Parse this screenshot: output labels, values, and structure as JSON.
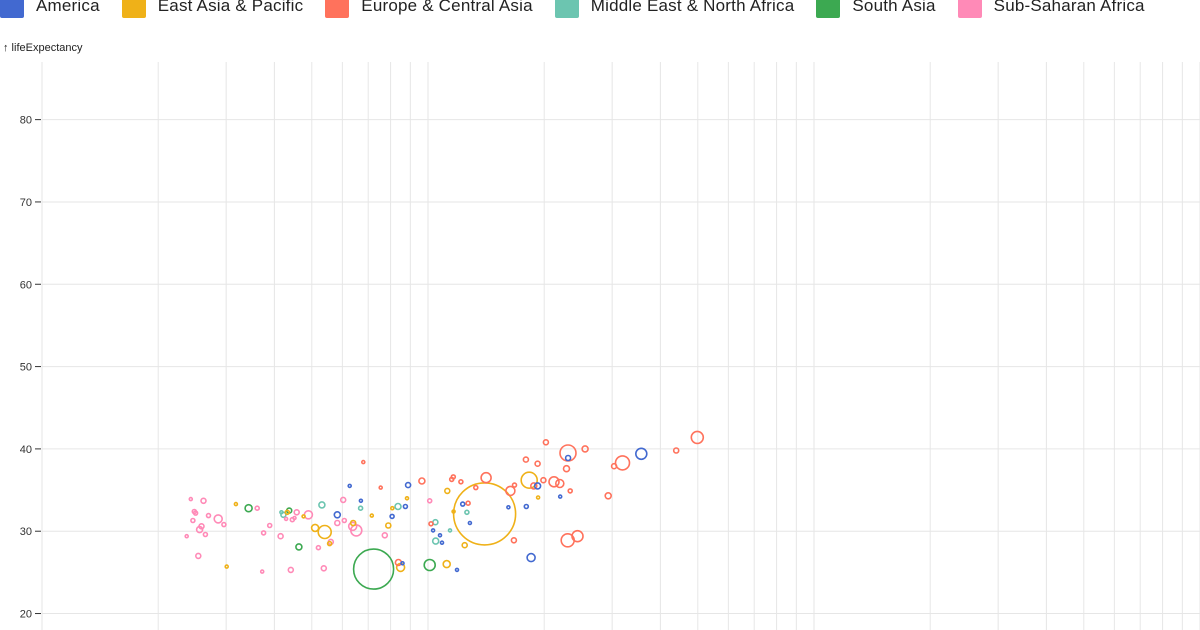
{
  "chart_data": {
    "type": "scatter",
    "title": "",
    "xlabel": "",
    "ylabel": "↑ lifeExpectancy",
    "x_scale": "log",
    "xlim": [
      100,
      100000
    ],
    "ylim": [
      18,
      87
    ],
    "y_ticks": [
      20,
      30,
      40,
      50,
      60,
      70,
      80
    ],
    "grid": true,
    "legend_position": "top-left",
    "categories": [
      {
        "name": "America",
        "color": "#4269d0"
      },
      {
        "name": "East Asia & Pacific",
        "color": "#efb118"
      },
      {
        "name": "Europe & Central Asia",
        "color": "#ff725c"
      },
      {
        "name": "Middle East & North Africa",
        "color": "#6cc5b0"
      },
      {
        "name": "South Asia",
        "color": "#3ca951"
      },
      {
        "name": "Sub-Saharan Africa",
        "color": "#ff8ab7"
      }
    ],
    "points": [
      {
        "group": "South Asia",
        "x": 723,
        "y": 25.4,
        "size": 20
      },
      {
        "group": "East Asia & Pacific",
        "x": 1402,
        "y": 32.1,
        "size": 31
      },
      {
        "group": "Europe & Central Asia",
        "x": 4985,
        "y": 41.4,
        "size": 6
      },
      {
        "group": "America",
        "x": 3570,
        "y": 39.4,
        "size": 5.5
      },
      {
        "group": "Europe & Central Asia",
        "x": 3190,
        "y": 38.3,
        "size": 7
      },
      {
        "group": "Europe & Central Asia",
        "x": 2305,
        "y": 39.5,
        "size": 8
      },
      {
        "group": "Europe & Central Asia",
        "x": 2301,
        "y": 28.9,
        "size": 6.5
      },
      {
        "group": "Europe & Central Asia",
        "x": 2439,
        "y": 29.4,
        "size": 5.5
      },
      {
        "group": "America",
        "x": 1850,
        "y": 26.8,
        "size": 4
      },
      {
        "group": "East Asia & Pacific",
        "x": 1829,
        "y": 36.2,
        "size": 8
      },
      {
        "group": "Europe & Central Asia",
        "x": 1635,
        "y": 34.9,
        "size": 4.5
      },
      {
        "group": "Europe & Central Asia",
        "x": 1414,
        "y": 36.5,
        "size": 5
      },
      {
        "group": "Europe & Central Asia",
        "x": 2195,
        "y": 35.8,
        "size": 4
      },
      {
        "group": "Europe & Central Asia",
        "x": 2121,
        "y": 36.0,
        "size": 5
      },
      {
        "group": "Europe & Central Asia",
        "x": 2285,
        "y": 37.6,
        "size": 3
      },
      {
        "group": "Europe & Central Asia",
        "x": 2553,
        "y": 40.0,
        "size": 3
      },
      {
        "group": "Europe & Central Asia",
        "x": 2020,
        "y": 40.8,
        "size": 2.5
      },
      {
        "group": "Europe & Central Asia",
        "x": 2929,
        "y": 34.3,
        "size": 3
      },
      {
        "group": "Europe & Central Asia",
        "x": 3035,
        "y": 37.9,
        "size": 2.5
      },
      {
        "group": "Europe & Central Asia",
        "x": 4395,
        "y": 39.8,
        "size": 2.5
      },
      {
        "group": "Europe & Central Asia",
        "x": 1880,
        "y": 35.5,
        "size": 3
      },
      {
        "group": "Europe & Central Asia",
        "x": 1793,
        "y": 38.7,
        "size": 2.5
      },
      {
        "group": "Europe & Central Asia",
        "x": 1923,
        "y": 38.2,
        "size": 2.5
      },
      {
        "group": "America",
        "x": 1923,
        "y": 35.5,
        "size": 3
      },
      {
        "group": "America",
        "x": 2306,
        "y": 38.9,
        "size": 2.5
      },
      {
        "group": "Europe & Central Asia",
        "x": 2336,
        "y": 34.9,
        "size": 2
      },
      {
        "group": "America",
        "x": 2200,
        "y": 34.2,
        "size": 1.5
      },
      {
        "group": "Europe & Central Asia",
        "x": 1990,
        "y": 36.2,
        "size": 2.5
      },
      {
        "group": "Europe & Central Asia",
        "x": 1217,
        "y": 36.0,
        "size": 2
      },
      {
        "group": "Europe & Central Asia",
        "x": 1330,
        "y": 35.3,
        "size": 2
      },
      {
        "group": "America",
        "x": 1798,
        "y": 33.0,
        "size": 2
      },
      {
        "group": "Europe & Central Asia",
        "x": 1675,
        "y": 35.6,
        "size": 2
      },
      {
        "group": "East Asia & Pacific",
        "x": 1928,
        "y": 34.1,
        "size": 1.5
      },
      {
        "group": "America",
        "x": 1615,
        "y": 32.9,
        "size": 1.5
      },
      {
        "group": "Europe & Central Asia",
        "x": 1669,
        "y": 28.9,
        "size": 2.5
      },
      {
        "group": "Europe & Central Asia",
        "x": 1270,
        "y": 33.4,
        "size": 2
      },
      {
        "group": "East Asia & Pacific",
        "x": 1245,
        "y": 28.3,
        "size": 2.5
      },
      {
        "group": "Middle East & North Africa",
        "x": 1140,
        "y": 30.1,
        "size": 1.5
      },
      {
        "group": "America",
        "x": 1074,
        "y": 29.5,
        "size": 1.5
      },
      {
        "group": "East Asia & Pacific",
        "x": 1122,
        "y": 34.9,
        "size": 2.5
      },
      {
        "group": "America",
        "x": 1031,
        "y": 30.1,
        "size": 1.5
      },
      {
        "group": "Europe & Central Asia",
        "x": 1018,
        "y": 30.9,
        "size": 2
      },
      {
        "group": "America",
        "x": 1087,
        "y": 28.6,
        "size": 1.5
      },
      {
        "group": "America",
        "x": 1230,
        "y": 33.3,
        "size": 2
      },
      {
        "group": "Middle East & North Africa",
        "x": 1045,
        "y": 31.1,
        "size": 2.5
      },
      {
        "group": "Middle East & North Africa",
        "x": 1261,
        "y": 32.3,
        "size": 2
      },
      {
        "group": "America",
        "x": 1284,
        "y": 31.0,
        "size": 1.5
      },
      {
        "group": "Middle East & North Africa",
        "x": 1047,
        "y": 28.8,
        "size": 3
      },
      {
        "group": "East Asia & Pacific",
        "x": 1165,
        "y": 32.4,
        "size": 1.5
      },
      {
        "group": "Europe & Central Asia",
        "x": 1152,
        "y": 36.3,
        "size": 2
      },
      {
        "group": "Europe & Central Asia",
        "x": 1163,
        "y": 36.6,
        "size": 2
      },
      {
        "group": "Europe & Central Asia",
        "x": 964,
        "y": 36.1,
        "size": 3
      },
      {
        "group": "East Asia & Pacific",
        "x": 882,
        "y": 34.0,
        "size": 1.5
      },
      {
        "group": "America",
        "x": 888,
        "y": 35.6,
        "size": 2.5
      },
      {
        "group": "America",
        "x": 874,
        "y": 33.0,
        "size": 2
      },
      {
        "group": "Sub-Saharan Africa",
        "x": 1010,
        "y": 33.7,
        "size": 2
      },
      {
        "group": "Middle East & North Africa",
        "x": 836,
        "y": 33.0,
        "size": 3
      },
      {
        "group": "East Asia & Pacific",
        "x": 808,
        "y": 32.8,
        "size": 1.5
      },
      {
        "group": "America",
        "x": 807,
        "y": 31.8,
        "size": 2
      },
      {
        "group": "Europe & Central Asia",
        "x": 754,
        "y": 35.3,
        "size": 1.5
      },
      {
        "group": "Europe & Central Asia",
        "x": 680,
        "y": 38.4,
        "size": 1.5
      },
      {
        "group": "America",
        "x": 627,
        "y": 35.5,
        "size": 1.5
      },
      {
        "group": "America",
        "x": 670,
        "y": 33.7,
        "size": 1.5
      },
      {
        "group": "Sub-Saharan Africa",
        "x": 638,
        "y": 30.6,
        "size": 4
      },
      {
        "group": "East Asia & Pacific",
        "x": 715,
        "y": 31.9,
        "size": 1.5
      },
      {
        "group": "Middle East & North Africa",
        "x": 669,
        "y": 32.8,
        "size": 2
      },
      {
        "group": "Sub-Saharan Africa",
        "x": 652,
        "y": 30.1,
        "size": 5.5
      },
      {
        "group": "East Asia & Pacific",
        "x": 640,
        "y": 31.0,
        "size": 2.5
      },
      {
        "group": "Sub-Saharan Africa",
        "x": 607,
        "y": 31.3,
        "size": 2
      },
      {
        "group": "Sub-Saharan Africa",
        "x": 773,
        "y": 29.5,
        "size": 2.5
      },
      {
        "group": "East Asia & Pacific",
        "x": 789,
        "y": 30.7,
        "size": 2.5
      },
      {
        "group": "Sub-Saharan Africa",
        "x": 603,
        "y": 33.8,
        "size": 2.5
      },
      {
        "group": "America",
        "x": 582,
        "y": 32.0,
        "size": 3
      },
      {
        "group": "Sub-Saharan Africa",
        "x": 582,
        "y": 31.0,
        "size": 2.5
      },
      {
        "group": "Middle East & North Africa",
        "x": 531,
        "y": 33.2,
        "size": 3
      },
      {
        "group": "East Asia & Pacific",
        "x": 540,
        "y": 29.9,
        "size": 6.5
      },
      {
        "group": "East Asia & Pacific",
        "x": 510,
        "y": 30.4,
        "size": 3.5
      },
      {
        "group": "Sub-Saharan Africa",
        "x": 560,
        "y": 28.7,
        "size": 2.5
      },
      {
        "group": "Sub-Saharan Africa",
        "x": 520,
        "y": 28.0,
        "size": 2
      },
      {
        "group": "East Asia & Pacific",
        "x": 556,
        "y": 28.5,
        "size": 2
      },
      {
        "group": "Sub-Saharan Africa",
        "x": 537,
        "y": 25.5,
        "size": 2.5
      },
      {
        "group": "South Asia",
        "x": 1010,
        "y": 25.9,
        "size": 5.5
      },
      {
        "group": "East Asia & Pacific",
        "x": 1118,
        "y": 26.0,
        "size": 3.5
      },
      {
        "group": "America",
        "x": 1189,
        "y": 25.3,
        "size": 1.5
      },
      {
        "group": "East Asia & Pacific",
        "x": 849,
        "y": 25.6,
        "size": 4
      },
      {
        "group": "Europe & Central Asia",
        "x": 838,
        "y": 26.2,
        "size": 3
      },
      {
        "group": "America",
        "x": 859,
        "y": 26.1,
        "size": 1.5
      },
      {
        "group": "Sub-Saharan Africa",
        "x": 441,
        "y": 25.3,
        "size": 2.5
      },
      {
        "group": "Sub-Saharan Africa",
        "x": 372,
        "y": 25.1,
        "size": 1.5
      },
      {
        "group": "Sub-Saharan Africa",
        "x": 254,
        "y": 27.0,
        "size": 2.5
      },
      {
        "group": "Sub-Saharan Africa",
        "x": 490,
        "y": 32.0,
        "size": 4
      },
      {
        "group": "Sub-Saharan Africa",
        "x": 457,
        "y": 32.3,
        "size": 2.5
      },
      {
        "group": "South Asia",
        "x": 437,
        "y": 32.5,
        "size": 2.5
      },
      {
        "group": "East Asia & Pacific",
        "x": 432,
        "y": 32.3,
        "size": 2
      },
      {
        "group": "Middle East & North Africa",
        "x": 417,
        "y": 32.3,
        "size": 1.5
      },
      {
        "group": "Middle East & North Africa",
        "x": 422,
        "y": 32.0,
        "size": 2.5
      },
      {
        "group": "Sub-Saharan Africa",
        "x": 451,
        "y": 31.6,
        "size": 1.5
      },
      {
        "group": "East Asia & Pacific",
        "x": 476,
        "y": 31.8,
        "size": 1.5
      },
      {
        "group": "Sub-Saharan Africa",
        "x": 429,
        "y": 31.5,
        "size": 1.5
      },
      {
        "group": "Sub-Saharan Africa",
        "x": 445,
        "y": 31.4,
        "size": 2
      },
      {
        "group": "Sub-Saharan Africa",
        "x": 389,
        "y": 30.7,
        "size": 2
      },
      {
        "group": "Sub-Saharan Africa",
        "x": 375,
        "y": 29.8,
        "size": 2
      },
      {
        "group": "Sub-Saharan Africa",
        "x": 415,
        "y": 29.4,
        "size": 2.5
      },
      {
        "group": "South Asia",
        "x": 463,
        "y": 28.1,
        "size": 3
      },
      {
        "group": "South Asia",
        "x": 343,
        "y": 32.8,
        "size": 3.5
      },
      {
        "group": "Sub-Saharan Africa",
        "x": 361,
        "y": 32.8,
        "size": 2
      },
      {
        "group": "Sub-Saharan Africa",
        "x": 286,
        "y": 31.5,
        "size": 4
      },
      {
        "group": "Sub-Saharan Africa",
        "x": 270,
        "y": 31.9,
        "size": 2
      },
      {
        "group": "Sub-Saharan Africa",
        "x": 250,
        "y": 32.2,
        "size": 2
      },
      {
        "group": "Sub-Saharan Africa",
        "x": 248,
        "y": 32.4,
        "size": 2
      },
      {
        "group": "Sub-Saharan Africa",
        "x": 262,
        "y": 33.7,
        "size": 2.5
      },
      {
        "group": "Sub-Saharan Africa",
        "x": 243,
        "y": 33.9,
        "size": 1.5
      },
      {
        "group": "Sub-Saharan Africa",
        "x": 246,
        "y": 31.3,
        "size": 2
      },
      {
        "group": "Sub-Saharan Africa",
        "x": 259,
        "y": 30.6,
        "size": 2.5
      },
      {
        "group": "Sub-Saharan Africa",
        "x": 265,
        "y": 29.6,
        "size": 2
      },
      {
        "group": "Sub-Saharan Africa",
        "x": 256,
        "y": 30.2,
        "size": 3
      },
      {
        "group": "Sub-Saharan Africa",
        "x": 237,
        "y": 29.4,
        "size": 1.5
      },
      {
        "group": "Sub-Saharan Africa",
        "x": 296,
        "y": 30.8,
        "size": 2
      },
      {
        "group": "East Asia & Pacific",
        "x": 301,
        "y": 25.7,
        "size": 1.5
      },
      {
        "group": "East Asia & Pacific",
        "x": 318,
        "y": 33.3,
        "size": 1.5
      }
    ]
  }
}
